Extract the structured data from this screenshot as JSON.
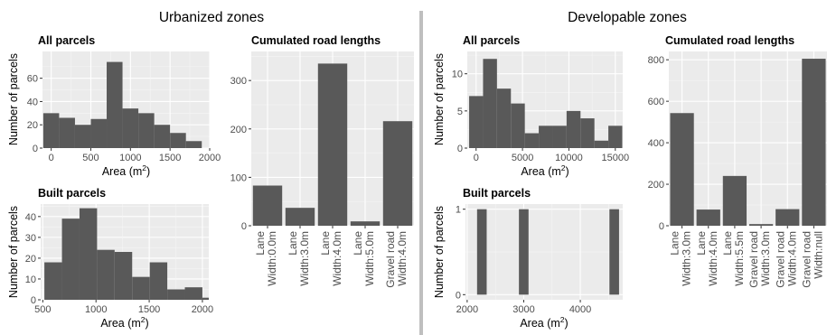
{
  "sections": [
    {
      "title": "Urbanized zones"
    },
    {
      "title": "Developable zones"
    }
  ],
  "colors": {
    "bar": "#595959",
    "panel_bg": "#ebebeb",
    "grid_major": "#ffffff",
    "grid_minor": "#f5f5f5",
    "divider": "#bfbfbf",
    "axis_text": "#4d4d4d",
    "title_text": "#000000"
  },
  "chart_data": [
    {
      "id": "urban-all",
      "section": "Urbanized zones",
      "type": "bar",
      "title": "All parcels",
      "xlabel": "Area (m²)",
      "ylabel": "Number of parcels",
      "x_ticks": [
        0,
        500,
        1000,
        1500,
        2000
      ],
      "y_ticks": [
        0,
        20,
        40,
        60
      ],
      "xlim": [
        -110,
        2000
      ],
      "ylim": [
        0,
        83
      ],
      "bin_width": 200,
      "bins": [
        {
          "x0": -100,
          "x1": 100,
          "count": 30
        },
        {
          "x0": 100,
          "x1": 300,
          "count": 26
        },
        {
          "x0": 300,
          "x1": 500,
          "count": 20
        },
        {
          "x0": 500,
          "x1": 700,
          "count": 25
        },
        {
          "x0": 700,
          "x1": 900,
          "count": 74
        },
        {
          "x0": 900,
          "x1": 1100,
          "count": 34
        },
        {
          "x0": 1100,
          "x1": 1300,
          "count": 30
        },
        {
          "x0": 1300,
          "x1": 1500,
          "count": 20
        },
        {
          "x0": 1500,
          "x1": 1700,
          "count": 13
        },
        {
          "x0": 1700,
          "x1": 1900,
          "count": 6
        }
      ],
      "grid": true
    },
    {
      "id": "urban-built",
      "section": "Urbanized zones",
      "type": "bar",
      "title": "Built parcels",
      "xlabel": "Area (m²)",
      "ylabel": "Number of parcels",
      "x_ticks": [
        500,
        1000,
        1500,
        2000
      ],
      "y_ticks": [
        0,
        10,
        20,
        30,
        40
      ],
      "xlim": [
        480,
        2060
      ],
      "ylim": [
        0,
        46
      ],
      "bin_width": 165,
      "bins": [
        {
          "x0": 515,
          "x1": 680,
          "count": 18
        },
        {
          "x0": 680,
          "x1": 845,
          "count": 39
        },
        {
          "x0": 845,
          "x1": 1010,
          "count": 44
        },
        {
          "x0": 1010,
          "x1": 1175,
          "count": 24
        },
        {
          "x0": 1175,
          "x1": 1340,
          "count": 23
        },
        {
          "x0": 1340,
          "x1": 1505,
          "count": 11
        },
        {
          "x0": 1505,
          "x1": 1670,
          "count": 18
        },
        {
          "x0": 1670,
          "x1": 1835,
          "count": 5
        },
        {
          "x0": 1835,
          "x1": 2000,
          "count": 6
        },
        {
          "x0": 2000,
          "x1": 2165,
          "count": 1
        }
      ],
      "grid": true
    },
    {
      "id": "urban-roads",
      "section": "Urbanized zones",
      "type": "bar",
      "title": "Cumulated road lengths",
      "xlabel": "",
      "ylabel": "",
      "categories": [
        "Lane\nWidth:0.0m",
        "Lane\nWidth:3.0m",
        "Lane\nWidth:4.0m",
        "Lane\nWidth:5.0m",
        "Gravel road\nWidth:4.0m"
      ],
      "values": [
        83,
        37,
        335,
        9,
        216
      ],
      "y_ticks": [
        0,
        100,
        200,
        300
      ],
      "ylim": [
        0,
        360
      ],
      "grid": true
    },
    {
      "id": "dev-all",
      "section": "Developable zones",
      "type": "bar",
      "title": "All parcels",
      "xlabel": "Area (m²)",
      "ylabel": "Number of parcels",
      "x_ticks": [
        0,
        5000,
        10000,
        15000
      ],
      "y_ticks": [
        0,
        5,
        10
      ],
      "xlim": [
        -950,
        15800
      ],
      "ylim": [
        0,
        13
      ],
      "bin_width": 1500,
      "bins": [
        {
          "x0": -750,
          "x1": 750,
          "count": 7
        },
        {
          "x0": 750,
          "x1": 2250,
          "count": 12
        },
        {
          "x0": 2250,
          "x1": 3750,
          "count": 8
        },
        {
          "x0": 3750,
          "x1": 5250,
          "count": 6
        },
        {
          "x0": 5250,
          "x1": 6750,
          "count": 2
        },
        {
          "x0": 6750,
          "x1": 8250,
          "count": 3
        },
        {
          "x0": 8250,
          "x1": 9750,
          "count": 3
        },
        {
          "x0": 9750,
          "x1": 11250,
          "count": 5
        },
        {
          "x0": 11250,
          "x1": 12750,
          "count": 4
        },
        {
          "x0": 12750,
          "x1": 14250,
          "count": 1
        },
        {
          "x0": 14250,
          "x1": 15750,
          "count": 3
        }
      ],
      "grid": true
    },
    {
      "id": "dev-built",
      "section": "Developable zones",
      "type": "bar",
      "title": "Built parcels",
      "xlabel": "Area (m²)",
      "ylabel": "Number of parcels",
      "x_ticks": [
        2000,
        3000,
        4000
      ],
      "y_ticks": [
        0,
        1
      ],
      "xlim": [
        1970,
        4750
      ],
      "ylim": [
        -0.06,
        1.06
      ],
      "bin_width": 170,
      "bins": [
        {
          "x0": 2175,
          "x1": 2345,
          "count": 1
        },
        {
          "x0": 2915,
          "x1": 3085,
          "count": 1
        },
        {
          "x0": 4515,
          "x1": 4685,
          "count": 1
        }
      ],
      "grid": true
    },
    {
      "id": "dev-roads",
      "section": "Developable zones",
      "type": "bar",
      "title": "Cumulated road lengths",
      "xlabel": "",
      "ylabel": "",
      "categories": [
        "Lane\nWidth:3.0m",
        "Lane\nWidth:4.0m",
        "Lane\nWidth:5.5m",
        "Gravel road\nWidth:3.0m",
        "Gravel road\nWidth:4.0m",
        "Gravel road\nWidth:null"
      ],
      "values": [
        543,
        78,
        240,
        8,
        80,
        805
      ],
      "y_ticks": [
        0,
        200,
        400,
        600,
        800
      ],
      "ylim": [
        0,
        840
      ],
      "grid": true
    }
  ]
}
